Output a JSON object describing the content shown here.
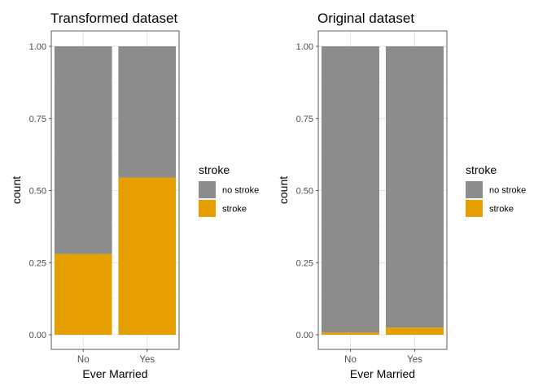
{
  "chart_data": [
    {
      "type": "bar",
      "stacked": true,
      "title": "Transformed dataset",
      "xlabel": "Ever Married",
      "ylabel": "count",
      "categories": [
        "No",
        "Yes"
      ],
      "series": [
        {
          "name": "stroke",
          "values": [
            0.28,
            0.545
          ],
          "color": "#E69F00"
        },
        {
          "name": "no stroke",
          "values": [
            0.72,
            0.455
          ],
          "color": "#8C8C8C"
        }
      ],
      "ylim": [
        0,
        1
      ],
      "yticks": [
        "0.00",
        "0.25",
        "0.50",
        "0.75",
        "1.00"
      ],
      "grid": true,
      "legend": {
        "title": "stroke",
        "position": "right",
        "entries": [
          "no stroke",
          "stroke"
        ]
      }
    },
    {
      "type": "bar",
      "stacked": true,
      "title": "Original dataset",
      "xlabel": "Ever Married",
      "ylabel": "count",
      "categories": [
        "No",
        "Yes"
      ],
      "series": [
        {
          "name": "stroke",
          "values": [
            0.008,
            0.025
          ],
          "color": "#E69F00"
        },
        {
          "name": "no stroke",
          "values": [
            0.992,
            0.975
          ],
          "color": "#8C8C8C"
        }
      ],
      "ylim": [
        0,
        1
      ],
      "yticks": [
        "0.00",
        "0.25",
        "0.50",
        "0.75",
        "1.00"
      ],
      "grid": true,
      "legend": {
        "title": "stroke",
        "position": "right",
        "entries": [
          "no stroke",
          "stroke"
        ]
      }
    }
  ]
}
